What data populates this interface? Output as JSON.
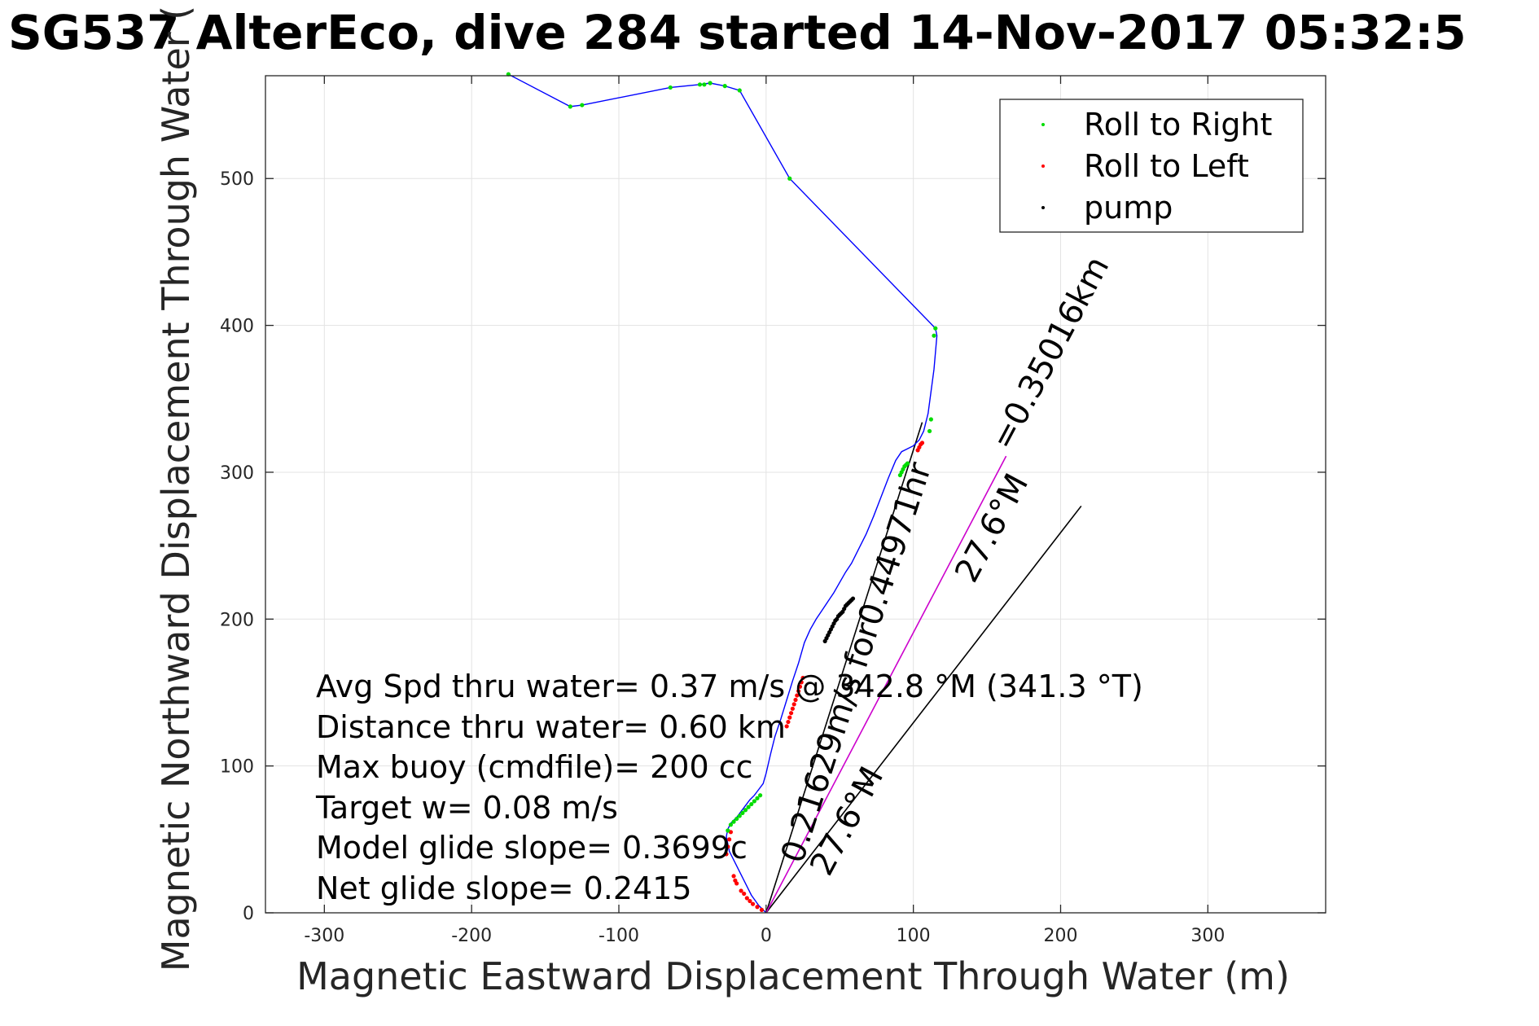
{
  "chart_data": {
    "type": "line",
    "title": "SG537 AlterEco, dive 284 started 14-Nov-2017 05:32:5",
    "xlabel": "Magnetic Eastward Displacement Through Water (m)",
    "ylabel": "Magnetic Northward Displacement Through Water (",
    "xlim": [
      -340,
      380
    ],
    "ylim": [
      0,
      570
    ],
    "xticks": [
      -300,
      -200,
      -100,
      0,
      100,
      200,
      300
    ],
    "yticks": [
      0,
      100,
      200,
      300,
      400,
      500
    ],
    "grid": true,
    "legend_position": "top-right",
    "legend": [
      {
        "label": "Roll to Right",
        "color": "#00dd00"
      },
      {
        "label": "Roll to Left",
        "color": "#ff0000"
      },
      {
        "label": "pump",
        "color": "#000000"
      }
    ],
    "track": {
      "color": "#0000ff",
      "x": [
        0,
        -5,
        -10,
        -15,
        -20,
        -25,
        -27,
        -26,
        -24,
        -20,
        -17,
        -14,
        -11,
        -8,
        -5,
        -2,
        0,
        3,
        6,
        10,
        14,
        18,
        22,
        26,
        30,
        34,
        38,
        42,
        46,
        50,
        54,
        58,
        63,
        68,
        73,
        78,
        83,
        88,
        92,
        96,
        100,
        104,
        107,
        110,
        112,
        114,
        116,
        115,
        16,
        -18,
        -28,
        -38,
        -45,
        -65,
        -125,
        -133,
        -175
      ],
      "y": [
        0,
        5,
        12,
        22,
        32,
        42,
        52,
        57,
        61,
        65,
        69,
        73,
        77,
        80,
        84,
        88,
        95,
        108,
        120,
        132,
        145,
        158,
        170,
        184,
        193,
        200,
        206,
        212,
        218,
        225,
        232,
        238,
        248,
        258,
        270,
        283,
        296,
        308,
        314,
        316,
        318,
        322,
        328,
        340,
        355,
        370,
        393,
        398,
        500,
        560,
        563,
        565,
        564,
        562,
        550,
        549,
        571
      ]
    },
    "roll_right_points": {
      "x": [
        -26,
        -24,
        -22,
        -20,
        -18,
        -16,
        -14,
        -12,
        -10,
        -8,
        -6,
        -4,
        91,
        92,
        93,
        94,
        95,
        96,
        111,
        112,
        114,
        115,
        16,
        -18,
        -28,
        -38,
        -42,
        -45,
        -65,
        -125,
        -133,
        -175
      ],
      "y": [
        56,
        60,
        62,
        64,
        66,
        68,
        70,
        72,
        74,
        76,
        78,
        80,
        298,
        300,
        302,
        304,
        305,
        306,
        328,
        336,
        393,
        398,
        500,
        560,
        563,
        565,
        564,
        564,
        562,
        550,
        549,
        571
      ]
    },
    "roll_left_points": {
      "x": [
        -27,
        -26,
        -25,
        -24,
        -22,
        -21,
        -20,
        -17,
        -15,
        -13,
        -11,
        -9,
        -6,
        -3,
        14,
        15,
        16,
        17,
        18,
        19,
        20,
        21,
        22,
        23,
        24,
        25,
        103,
        104,
        105,
        106
      ],
      "y": [
        40,
        45,
        50,
        55,
        25,
        22,
        20,
        15,
        13,
        10,
        8,
        6,
        4,
        2,
        127,
        130,
        133,
        136,
        139,
        142,
        145,
        148,
        151,
        154,
        157,
        160,
        315,
        317,
        319,
        320
      ]
    },
    "pump_points": {
      "x": [
        40,
        41,
        42,
        43,
        44,
        45,
        46,
        47,
        48,
        49,
        50,
        51,
        52,
        53,
        54,
        55,
        56,
        57,
        58,
        59
      ],
      "y": [
        185,
        187,
        189,
        191,
        193,
        195,
        197,
        199,
        200,
        202,
        203,
        204,
        205,
        207,
        209,
        210,
        211,
        212,
        213,
        214
      ]
    },
    "reference_lines": [
      {
        "name": "depth-averaged current line",
        "color": "#000000",
        "x": [
          0,
          106
        ],
        "y": [
          0,
          334
        ]
      },
      {
        "name": "current line 2",
        "color": "#000000",
        "x": [
          0,
          214
        ],
        "y": [
          0,
          277
        ]
      },
      {
        "name": "net displacement line",
        "color": "#cc00cc",
        "x": [
          0,
          163
        ],
        "y": [
          0,
          311
        ]
      }
    ],
    "annotations": [
      "Avg Spd thru water=  0.37 m/s @ 342.8 °M (341.3 °T)",
      "Distance thru water=  0.60 km",
      "Max buoy (cmdfile)= 200 cc",
      "Target w= 0.08 m/s",
      "Model glide slope= 0.3699c",
      "Net glide slope= 0.2415"
    ],
    "rotated_labels": [
      "=0.35016km",
      "27.6°M",
      "0.21629m/s for0.44971hr",
      "27.6°M"
    ]
  }
}
